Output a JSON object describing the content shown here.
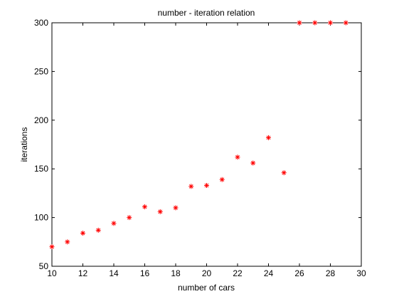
{
  "chart_data": {
    "type": "scatter",
    "title": "number - iteration relation",
    "xlabel": "number of cars",
    "ylabel": "iterations",
    "xlim": [
      10,
      30
    ],
    "ylim": [
      50,
      300
    ],
    "x_ticks": [
      10,
      12,
      14,
      16,
      18,
      20,
      22,
      24,
      26,
      28,
      30
    ],
    "y_ticks": [
      50,
      100,
      150,
      200,
      250,
      300
    ],
    "grid": false,
    "marker": "asterisk",
    "marker_color": "#ff0000",
    "series": [
      {
        "x": [
          10,
          11,
          12,
          13,
          14,
          15,
          16,
          17,
          18,
          19,
          20,
          21,
          22,
          23,
          24,
          25,
          26,
          27,
          28,
          29
        ],
        "y": [
          70,
          75,
          84,
          87,
          94,
          100,
          111,
          106,
          110,
          132,
          133,
          139,
          162,
          156,
          182,
          146,
          300,
          300,
          300,
          300
        ]
      }
    ]
  }
}
